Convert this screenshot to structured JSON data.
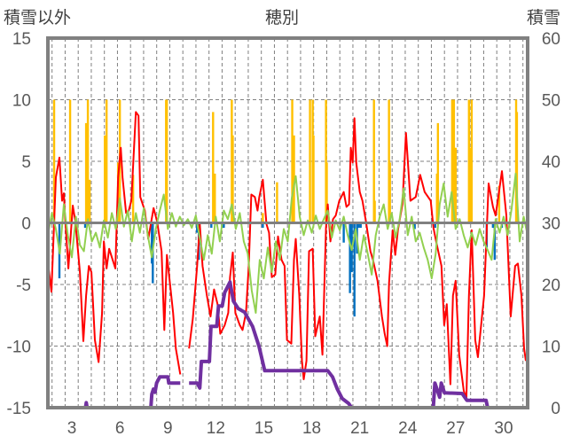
{
  "chart_data": {
    "type": "line",
    "title": "穂別",
    "ylabel_left": "積雪以外",
    "ylabel_right": "積雪",
    "xlim": [
      1.5,
      31.5
    ],
    "ylim_left": [
      -15,
      15
    ],
    "ylim_right": [
      0,
      60
    ],
    "x_ticks": [
      3,
      6,
      9,
      12,
      15,
      18,
      21,
      24,
      27,
      30
    ],
    "y_ticks_left": [
      15,
      10,
      5,
      0,
      -5,
      -10,
      -15
    ],
    "y_ticks_right": [
      60,
      50,
      40,
      30,
      20,
      10,
      0
    ],
    "grid": true,
    "colors": {
      "red": "#FF0000",
      "green": "#92D050",
      "orange": "#FFC000",
      "blue": "#0070C0",
      "purple": "#7030A0",
      "frame": "#808080"
    },
    "series": [
      {
        "name": "red",
        "axis": "left",
        "kind": "line",
        "color": "#FF0000",
        "points": [
          [
            1.45,
            -2.6
          ],
          [
            1.72,
            -5.6
          ],
          [
            2.0,
            3.7
          ],
          [
            2.22,
            5.3
          ],
          [
            2.39,
            1.8
          ],
          [
            2.5,
            2.4
          ],
          [
            2.56,
            0.8
          ],
          [
            2.78,
            -3.7
          ],
          [
            3.06,
            1.4
          ],
          [
            3.22,
            0.1
          ],
          [
            3.5,
            -4.0
          ],
          [
            3.72,
            -9.6
          ],
          [
            3.89,
            -5.9
          ],
          [
            4.06,
            -3.5
          ],
          [
            4.22,
            -4.0
          ],
          [
            4.44,
            -9.5
          ],
          [
            4.67,
            -11.3
          ],
          [
            4.89,
            -7.3
          ],
          [
            5.0,
            -1.5
          ],
          [
            5.17,
            -3.7
          ],
          [
            5.33,
            -2.1
          ],
          [
            5.72,
            -3.7
          ],
          [
            5.89,
            3.7
          ],
          [
            6.06,
            6.1
          ],
          [
            6.17,
            3.7
          ],
          [
            6.39,
            0.8
          ],
          [
            6.56,
            1.0
          ],
          [
            6.72,
            1.8
          ],
          [
            7.0,
            9.0
          ],
          [
            7.17,
            8.7
          ],
          [
            7.28,
            2.1
          ],
          [
            7.56,
            1.0
          ],
          [
            7.78,
            -1.3
          ],
          [
            8.11,
            1.2
          ],
          [
            8.33,
            0.1
          ],
          [
            8.61,
            -2.3
          ],
          [
            8.78,
            -8.7
          ],
          [
            8.94,
            -2.6
          ],
          [
            9.33,
            -7.3
          ],
          [
            9.5,
            -10.2
          ],
          [
            9.78,
            -12.3
          ],
          null,
          [
            10.33,
            -10.2
          ],
          [
            10.56,
            -7.8
          ],
          [
            10.83,
            -3.5
          ],
          [
            11.0,
            -0.1
          ],
          [
            11.17,
            -3.5
          ],
          [
            11.44,
            -5.9
          ],
          [
            11.67,
            -7.6
          ],
          [
            11.89,
            -5.4
          ],
          [
            12.11,
            -6.6
          ],
          [
            12.28,
            -9.0
          ],
          [
            12.56,
            -8.3
          ],
          [
            12.78,
            -7.3
          ],
          [
            12.89,
            -4.4
          ],
          [
            13.06,
            -2.4
          ],
          [
            13.22,
            -7.3
          ],
          [
            13.5,
            -8.3
          ],
          [
            13.67,
            -8.7
          ],
          [
            13.89,
            -7.3
          ],
          [
            14.06,
            -3.5
          ],
          [
            14.22,
            2.3
          ],
          [
            14.44,
            2.1
          ],
          [
            14.61,
            1.0
          ],
          [
            14.72,
            2.1
          ],
          [
            14.94,
            3.5
          ],
          [
            15.17,
            -0.1
          ],
          [
            15.33,
            -0.8
          ],
          [
            15.5,
            -4.4
          ],
          [
            15.72,
            -4.2
          ],
          [
            15.89,
            -1.1
          ],
          [
            16.11,
            -3.0
          ],
          [
            16.3,
            -3.5
          ],
          [
            16.45,
            -9.5
          ],
          [
            16.72,
            -9.8
          ],
          [
            16.89,
            -3.0
          ],
          [
            17.0,
            -1.3
          ],
          [
            17.22,
            -5.9
          ],
          [
            17.39,
            -11.2
          ],
          [
            17.5,
            -12.7
          ],
          [
            17.67,
            -11.2
          ],
          [
            17.83,
            -2.3
          ],
          [
            18.06,
            -2.1
          ],
          [
            18.22,
            -9.2
          ],
          [
            18.5,
            -7.6
          ],
          [
            18.67,
            -10.7
          ],
          [
            18.89,
            -0.4
          ],
          [
            19.0,
            1.5
          ],
          [
            19.17,
            -1.5
          ],
          [
            19.33,
            0.3
          ],
          [
            19.5,
            0.6
          ],
          [
            19.72,
            1.8
          ],
          [
            20.0,
            2.5
          ],
          [
            20.17,
            1.3
          ],
          [
            20.33,
            1.5
          ],
          [
            20.44,
            6.1
          ],
          [
            20.56,
            4.9
          ],
          [
            20.67,
            8.5
          ],
          [
            20.78,
            4.9
          ],
          [
            21.0,
            2.5
          ],
          [
            21.17,
            1.8
          ],
          [
            21.39,
            0.1
          ],
          [
            21.67,
            -2.3
          ],
          [
            21.83,
            -3.0
          ],
          [
            22.11,
            -4.7
          ],
          [
            22.39,
            -7.6
          ],
          [
            22.56,
            -9.0
          ],
          [
            22.72,
            -10.0
          ],
          [
            22.83,
            -4.9
          ],
          [
            23.06,
            -0.6
          ],
          [
            23.22,
            -2.6
          ],
          [
            23.39,
            -0.6
          ],
          [
            23.67,
            1.5
          ],
          [
            23.89,
            7.3
          ],
          [
            24.17,
            1.8
          ],
          [
            24.5,
            2.1
          ],
          [
            24.78,
            3.9
          ],
          [
            25.06,
            2.5
          ],
          [
            25.44,
            1.8
          ],
          [
            25.61,
            -0.4
          ],
          [
            25.78,
            -1.5
          ],
          [
            26.11,
            -3.5
          ],
          [
            26.28,
            -8.3
          ],
          [
            26.44,
            -6.6
          ],
          [
            26.67,
            -13.1
          ],
          [
            26.83,
            -5.9
          ],
          [
            27.0,
            -4.7
          ],
          [
            27.22,
            -10.7
          ],
          [
            27.5,
            -13.6
          ],
          [
            27.67,
            -14.3
          ],
          [
            27.83,
            -5.9
          ],
          [
            28.0,
            -0.6
          ],
          [
            28.22,
            -9.5
          ],
          [
            28.39,
            -10.9
          ],
          [
            28.78,
            -5.9
          ],
          [
            29.06,
            3.2
          ],
          [
            29.33,
            1.3
          ],
          [
            29.5,
            0.6
          ],
          [
            29.89,
            4.2
          ],
          [
            30.17,
            0.6
          ],
          [
            30.44,
            -7.6
          ],
          [
            30.72,
            -3.5
          ],
          [
            30.89,
            -3.3
          ],
          [
            31.11,
            -5.9
          ],
          [
            31.28,
            -10.2
          ],
          [
            31.39,
            -11.2
          ]
        ]
      },
      {
        "name": "green",
        "axis": "left",
        "kind": "line",
        "color": "#92D050",
        "x_start": 1.5,
        "x_step": 0.25,
        "values": [
          -1.0,
          0.8,
          -0.5,
          -2.5,
          1.5,
          -1.0,
          -2.8,
          0.5,
          -1.8,
          -2.3,
          0.3,
          -1.5,
          -0.8,
          -2.0,
          0.2,
          -1.2,
          0.8,
          -0.5,
          2.0,
          -0.3,
          1.0,
          -1.5,
          0.8,
          -0.8,
          1.2,
          -1.0,
          -2.8,
          -0.5,
          1.0,
          2.3,
          -0.5,
          0.8,
          -0.3,
          0.5,
          -0.2,
          0.3,
          -0.4,
          0.6,
          -1.2,
          -3.0,
          -1.0,
          -2.5,
          0.5,
          -1.5,
          1.0,
          0.3,
          1.5,
          -0.5,
          0.8,
          -1.5,
          -2.5,
          -5.5,
          -7.3,
          -3.0,
          -4.5,
          -2.0,
          -4.0,
          -1.5,
          -3.0,
          -0.5,
          -1.5,
          2.0,
          3.8,
          0.5,
          -1.0,
          0.2,
          -0.8,
          0.6,
          -0.5,
          0.3,
          1.0,
          -1.2,
          0.2,
          -0.6,
          0.5,
          -1.0,
          -2.2,
          -0.5,
          -3.0,
          -1.0,
          -2.5,
          -4.2,
          -1.0,
          0.5,
          1.5,
          -0.5,
          0.8,
          -1.2,
          0.3,
          2.8,
          -1.0,
          0.5,
          -1.5,
          -0.8,
          -2.0,
          -3.0,
          -4.5,
          -2.5,
          1.5,
          3.2,
          0.5,
          2.5,
          -0.5,
          0.3,
          -1.0,
          -2.0,
          -0.8,
          -1.8,
          -0.5,
          -1.5,
          -2.2,
          -3.0,
          0.3,
          -0.8,
          0.5,
          -1.0,
          1.2,
          4.0,
          -1.5,
          0.5,
          -1.0
        ]
      },
      {
        "name": "orange",
        "axis": "left",
        "kind": "bar",
        "color": "#FFC000",
        "points": [
          [
            1.89,
            10
          ],
          [
            2.89,
            10
          ],
          [
            3.89,
            8.1
          ],
          [
            4.0,
            10
          ],
          [
            4.11,
            3.5
          ],
          [
            5.06,
            7.1
          ],
          [
            5.17,
            10
          ],
          [
            5.89,
            4.9
          ],
          [
            6.0,
            10
          ],
          [
            6.83,
            3.9
          ],
          [
            8.89,
            10
          ],
          [
            8.94,
            10
          ],
          [
            11.83,
            9.0
          ],
          [
            11.94,
            4.0
          ],
          [
            13.0,
            10
          ],
          [
            13.06,
            7.1
          ],
          [
            14.94,
            0.8
          ],
          [
            15.83,
            3.3
          ],
          [
            16.78,
            10
          ],
          [
            16.89,
            7.1
          ],
          [
            17.89,
            10
          ],
          [
            18.06,
            10
          ],
          [
            18.11,
            7.1
          ],
          [
            18.89,
            10
          ],
          [
            18.94,
            4.9
          ],
          [
            21.89,
            10
          ],
          [
            21.94,
            1.8
          ],
          [
            22.83,
            10
          ],
          [
            22.89,
            4.9
          ],
          [
            25.83,
            4.0
          ],
          [
            25.89,
            8.1
          ],
          [
            26.78,
            10
          ],
          [
            26.89,
            10
          ],
          [
            27.0,
            6.1
          ],
          [
            27.83,
            10
          ],
          [
            27.94,
            6.1
          ],
          [
            28.0,
            10
          ],
          [
            29.72,
            3.0
          ],
          [
            30.78,
            10
          ],
          [
            30.83,
            9.0
          ]
        ]
      },
      {
        "name": "blue",
        "axis": "left",
        "kind": "bar",
        "color": "#0070C0",
        "points": [
          [
            2.22,
            -4.5
          ],
          [
            3.83,
            -0.4
          ],
          [
            8.0,
            -3.3
          ],
          [
            8.06,
            -4.9
          ],
          [
            10.83,
            -0.8
          ],
          [
            10.94,
            -3.0
          ],
          [
            11.72,
            -0.4
          ],
          [
            12.39,
            -0.4
          ],
          [
            12.5,
            -0.4
          ],
          [
            14.94,
            -0.4
          ],
          [
            20.0,
            -1.6
          ],
          [
            20.39,
            -5.7
          ],
          [
            20.5,
            -4.0
          ],
          [
            20.67,
            -7.6
          ],
          [
            20.83,
            -2.5
          ],
          [
            20.94,
            -0.4
          ],
          [
            21.06,
            -0.4
          ],
          [
            24.44,
            -0.5
          ],
          [
            25.72,
            -0.4
          ],
          [
            28.94,
            -2.0
          ],
          [
            29.33,
            -0.4
          ],
          [
            29.44,
            -3.0
          ],
          [
            29.89,
            -0.4
          ]
        ]
      },
      {
        "name": "purple",
        "axis": "right",
        "kind": "line",
        "color": "#7030A0",
        "points": [
          [
            1.45,
            0
          ],
          [
            3.85,
            0
          ],
          [
            3.9,
            0.8
          ],
          [
            3.95,
            0
          ],
          [
            7.94,
            0
          ],
          [
            8.0,
            2.2
          ],
          [
            8.1,
            3
          ],
          [
            8.2,
            2.5
          ],
          [
            8.3,
            4
          ],
          [
            8.5,
            5
          ],
          [
            9.0,
            5
          ],
          [
            9.06,
            4
          ],
          [
            9.78,
            4
          ],
          null,
          [
            10.33,
            4
          ],
          [
            10.83,
            4
          ],
          [
            11.0,
            3.2
          ],
          [
            11.1,
            7.5
          ],
          [
            11.6,
            7.5
          ],
          [
            11.7,
            13.2
          ],
          [
            12.06,
            13.2
          ],
          [
            12.17,
            16.5
          ],
          [
            12.4,
            16.5
          ],
          [
            12.56,
            18.7
          ],
          [
            12.89,
            20.4
          ],
          [
            13.1,
            17.3
          ],
          [
            13.4,
            16.1
          ],
          [
            13.8,
            15.5
          ],
          [
            14.3,
            13.2
          ],
          [
            14.7,
            10
          ],
          [
            15.06,
            6
          ],
          [
            19.0,
            6
          ],
          [
            19.3,
            5
          ],
          [
            19.6,
            3
          ],
          [
            19.9,
            1.5
          ],
          [
            20.3,
            0.7
          ],
          [
            20.5,
            0
          ],
          [
            25.6,
            0
          ],
          [
            25.7,
            4
          ],
          [
            26.0,
            1.7
          ],
          [
            26.1,
            4
          ],
          [
            26.3,
            2.4
          ],
          [
            27.4,
            2.3
          ],
          [
            27.7,
            1.2
          ],
          [
            28.9,
            1.2
          ],
          [
            29.0,
            0
          ],
          [
            31.5,
            0
          ]
        ]
      }
    ]
  }
}
